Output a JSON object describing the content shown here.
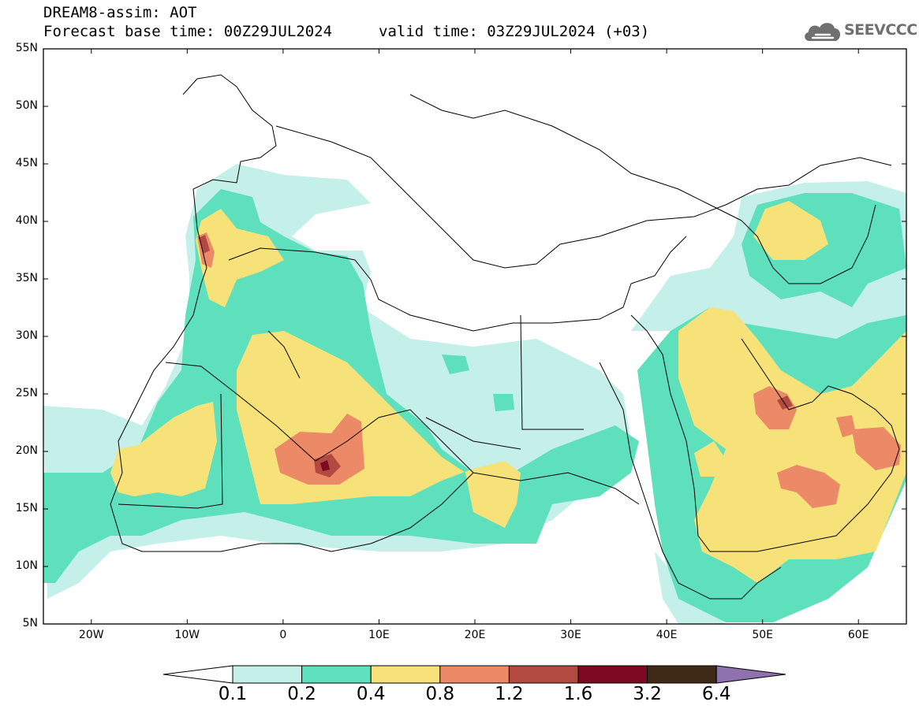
{
  "header": {
    "title": "DREAM8-assim: AOT",
    "forecast_base": "Forecast base time: 00Z29JUL2024",
    "valid_time": "valid time: 03Z29JUL2024 (+03)"
  },
  "logo": {
    "text": "SEEVCCC",
    "icon": "cloud-icon"
  },
  "map": {
    "lon_range": [
      -25,
      65
    ],
    "lat_range": [
      5,
      55
    ],
    "lat_labels": [
      "55N",
      "50N",
      "45N",
      "40N",
      "35N",
      "30N",
      "25N",
      "20N",
      "15N",
      "10N",
      "5N"
    ],
    "lon_labels": [
      "20W",
      "10W",
      "0",
      "10E",
      "20E",
      "30E",
      "40E",
      "50E",
      "60E"
    ]
  },
  "colorbar": {
    "labels": [
      "0.1",
      "0.2",
      "0.4",
      "0.8",
      "1.2",
      "1.6",
      "3.2",
      "6.4"
    ],
    "colors": [
      "#ffffff",
      "#c4f0e9",
      "#5ee0bd",
      "#f7e27a",
      "#ec8a68",
      "#b34a3f",
      "#7b0a22",
      "#3e2a16",
      "#8e72ae"
    ]
  }
}
